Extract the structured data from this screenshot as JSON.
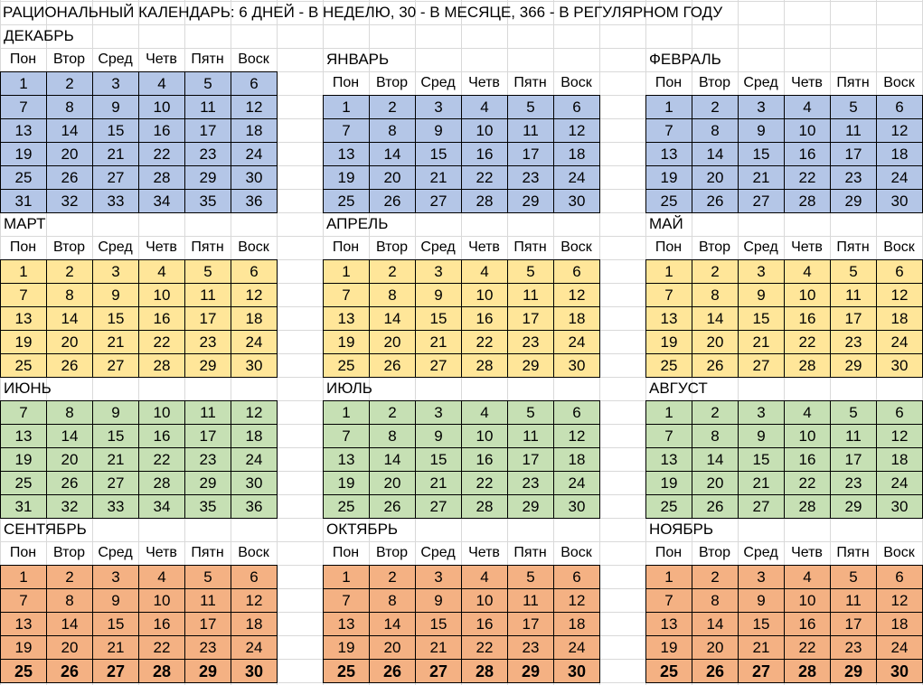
{
  "title": "РАЦИОНАЛЬНЫЙ КАЛЕНДАРЬ: 6 ДНЕЙ - В НЕДЕЛЮ, 30 - В МЕСЯЦЕ, 366 - В РЕГУЛЯРНОМ ГОДУ",
  "weekdays": [
    "Пон",
    "Втор",
    "Сред",
    "Четв",
    "Пятн",
    "Воск"
  ],
  "colors": {
    "winter": "#b4c6e7",
    "spring": "#ffe699",
    "summer": "#c6e0b4",
    "autumn": "#f4b183",
    "gridline": "#d9d9d9"
  },
  "months": [
    {
      "name": "ДЕКАБРЬ",
      "season": "winter",
      "rows": [
        [
          1,
          2,
          3,
          4,
          5,
          6
        ],
        [
          7,
          8,
          9,
          10,
          11,
          12
        ],
        [
          13,
          14,
          15,
          16,
          17,
          18
        ],
        [
          19,
          20,
          21,
          22,
          23,
          24
        ],
        [
          25,
          26,
          27,
          28,
          29,
          30
        ],
        [
          31,
          32,
          33,
          34,
          35,
          36
        ]
      ]
    },
    {
      "name": "ЯНВАРЬ",
      "season": "winter",
      "rows": [
        [
          1,
          2,
          3,
          4,
          5,
          6
        ],
        [
          7,
          8,
          9,
          10,
          11,
          12
        ],
        [
          13,
          14,
          15,
          16,
          17,
          18
        ],
        [
          19,
          20,
          21,
          22,
          23,
          24
        ],
        [
          25,
          26,
          27,
          28,
          29,
          30
        ]
      ]
    },
    {
      "name": "ФЕВРАЛЬ",
      "season": "winter",
      "rows": [
        [
          1,
          2,
          3,
          4,
          5,
          6
        ],
        [
          7,
          8,
          9,
          10,
          11,
          12
        ],
        [
          13,
          14,
          15,
          16,
          17,
          18
        ],
        [
          19,
          20,
          21,
          22,
          23,
          24
        ],
        [
          25,
          26,
          27,
          28,
          29,
          30
        ]
      ]
    },
    {
      "name": "МАРТ",
      "season": "spring",
      "rows": [
        [
          1,
          2,
          3,
          4,
          5,
          6
        ],
        [
          7,
          8,
          9,
          10,
          11,
          12
        ],
        [
          13,
          14,
          15,
          16,
          17,
          18
        ],
        [
          19,
          20,
          21,
          22,
          23,
          24
        ],
        [
          25,
          26,
          27,
          28,
          29,
          30
        ]
      ]
    },
    {
      "name": "АПРЕЛЬ",
      "season": "spring",
      "rows": [
        [
          1,
          2,
          3,
          4,
          5,
          6
        ],
        [
          7,
          8,
          9,
          10,
          11,
          12
        ],
        [
          13,
          14,
          15,
          16,
          17,
          18
        ],
        [
          19,
          20,
          21,
          22,
          23,
          24
        ],
        [
          25,
          26,
          27,
          28,
          29,
          30
        ]
      ]
    },
    {
      "name": "МАЙ",
      "season": "spring",
      "rows": [
        [
          1,
          2,
          3,
          4,
          5,
          6
        ],
        [
          7,
          8,
          9,
          10,
          11,
          12
        ],
        [
          13,
          14,
          15,
          16,
          17,
          18
        ],
        [
          19,
          20,
          21,
          22,
          23,
          24
        ],
        [
          25,
          26,
          27,
          28,
          29,
          30
        ]
      ]
    },
    {
      "name": "ИЮНЬ",
      "season": "summer",
      "rows": [
        [
          7,
          8,
          9,
          10,
          11,
          12
        ],
        [
          13,
          14,
          15,
          16,
          17,
          18
        ],
        [
          19,
          20,
          21,
          22,
          23,
          24
        ],
        [
          25,
          26,
          27,
          28,
          29,
          30
        ],
        [
          31,
          32,
          33,
          34,
          35,
          36
        ]
      ]
    },
    {
      "name": "ИЮЛЬ",
      "season": "summer",
      "rows": [
        [
          1,
          2,
          3,
          4,
          5,
          6
        ],
        [
          7,
          8,
          9,
          10,
          11,
          12
        ],
        [
          13,
          14,
          15,
          16,
          17,
          18
        ],
        [
          19,
          20,
          21,
          22,
          23,
          24
        ],
        [
          25,
          26,
          27,
          28,
          29,
          30
        ]
      ]
    },
    {
      "name": "АВГУСТ",
      "season": "summer",
      "rows": [
        [
          1,
          2,
          3,
          4,
          5,
          6
        ],
        [
          7,
          8,
          9,
          10,
          11,
          12
        ],
        [
          13,
          14,
          15,
          16,
          17,
          18
        ],
        [
          19,
          20,
          21,
          22,
          23,
          24
        ],
        [
          25,
          26,
          27,
          28,
          29,
          30
        ]
      ]
    },
    {
      "name": "СЕНТЯБРЬ",
      "season": "autumn",
      "rows": [
        [
          1,
          2,
          3,
          4,
          5,
          6
        ],
        [
          7,
          8,
          9,
          10,
          11,
          12
        ],
        [
          13,
          14,
          15,
          16,
          17,
          18
        ],
        [
          19,
          20,
          21,
          22,
          23,
          24
        ],
        [
          25,
          26,
          27,
          28,
          29,
          30
        ]
      ]
    },
    {
      "name": "ОКТЯБРЬ",
      "season": "autumn",
      "rows": [
        [
          1,
          2,
          3,
          4,
          5,
          6
        ],
        [
          7,
          8,
          9,
          10,
          11,
          12
        ],
        [
          13,
          14,
          15,
          16,
          17,
          18
        ],
        [
          19,
          20,
          21,
          22,
          23,
          24
        ],
        [
          25,
          26,
          27,
          28,
          29,
          30
        ]
      ]
    },
    {
      "name": "НОЯБРЬ",
      "season": "autumn",
      "rows": [
        [
          1,
          2,
          3,
          4,
          5,
          6
        ],
        [
          7,
          8,
          9,
          10,
          11,
          12
        ],
        [
          13,
          14,
          15,
          16,
          17,
          18
        ],
        [
          19,
          20,
          21,
          22,
          23,
          24
        ],
        [
          25,
          26,
          27,
          28,
          29,
          30
        ]
      ]
    }
  ]
}
